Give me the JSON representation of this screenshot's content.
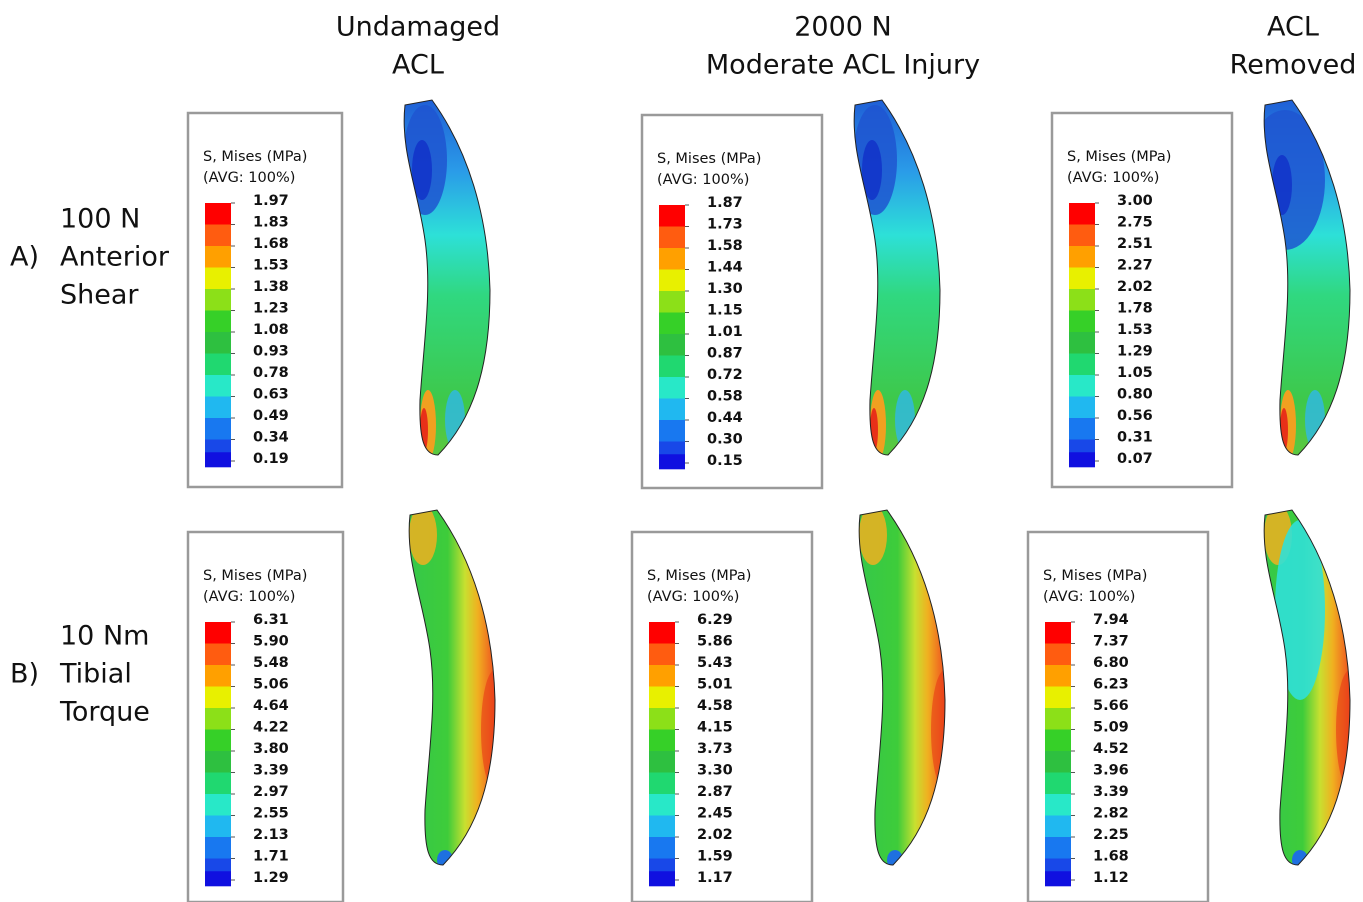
{
  "columns": [
    {
      "lines": [
        "Undamaged",
        "ACL"
      ]
    },
    {
      "lines": [
        "2000 N",
        "Moderate ACL Injury"
      ]
    },
    {
      "lines": [
        "ACL",
        "Removed"
      ]
    }
  ],
  "rows": [
    {
      "letter": "A)",
      "lines": [
        "100 N",
        "Anterior",
        "Shear"
      ]
    },
    {
      "letter": "B)",
      "lines": [
        "10 Nm",
        "Tibial",
        "Torque"
      ]
    }
  ],
  "panels": [
    {
      "title": "S, Mises (MPa)",
      "subtitle": "(AVG: 100%)",
      "values": [
        "1.97",
        "1.83",
        "1.68",
        "1.53",
        "1.38",
        "1.23",
        "1.08",
        "0.93",
        "0.78",
        "0.63",
        "0.49",
        "0.34",
        "0.19"
      ]
    },
    {
      "title": "S, Mises (MPa)",
      "subtitle": "(AVG: 100%)",
      "values": [
        "1.87",
        "1.73",
        "1.58",
        "1.44",
        "1.30",
        "1.15",
        "1.01",
        "0.87",
        "0.72",
        "0.58",
        "0.44",
        "0.30",
        "0.15"
      ]
    },
    {
      "title": "S, Mises (MPa)",
      "subtitle": "(AVG: 100%)",
      "values": [
        "3.00",
        "2.75",
        "2.51",
        "2.27",
        "2.02",
        "1.78",
        "1.53",
        "1.29",
        "1.05",
        "0.80",
        "0.56",
        "0.31",
        "0.07"
      ]
    },
    {
      "title": "S, Mises (MPa)",
      "subtitle": "(AVG: 100%)",
      "values": [
        "6.31",
        "5.90",
        "5.48",
        "5.06",
        "4.64",
        "4.22",
        "3.80",
        "3.39",
        "2.97",
        "2.55",
        "2.13",
        "1.71",
        "1.29"
      ]
    },
    {
      "title": "S, Mises (MPa)",
      "subtitle": "(AVG: 100%)",
      "values": [
        "6.29",
        "5.86",
        "5.43",
        "5.01",
        "4.58",
        "4.15",
        "3.73",
        "3.30",
        "2.87",
        "2.45",
        "2.02",
        "1.59",
        "1.17"
      ]
    },
    {
      "title": "S, Mises (MPa)",
      "subtitle": "(AVG: 100%)",
      "values": [
        "7.94",
        "7.37",
        "6.80",
        "6.23",
        "5.66",
        "5.09",
        "4.52",
        "3.96",
        "3.39",
        "2.82",
        "2.25",
        "1.68",
        "1.12"
      ]
    }
  ]
}
